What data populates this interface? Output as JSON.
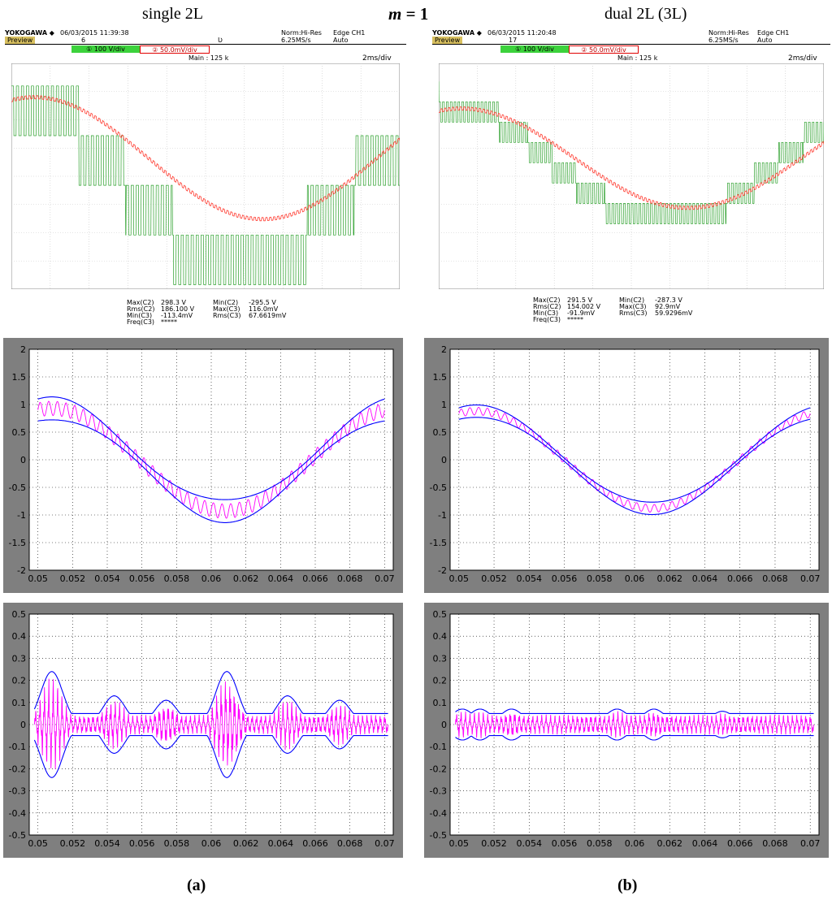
{
  "header": {
    "left": "single 2L",
    "center_var": "m",
    "center_rest": " = 1",
    "right": "dual 2L (3L)"
  },
  "panel_labels": {
    "a_open": "(",
    "a": "a",
    "a_close": ")",
    "b_open": "(",
    "b": "b",
    "b_close": ")"
  },
  "scopes": [
    {
      "brand": "YOKOGAWA ◆",
      "mode": "Preview",
      "date": "06/03/2015 11:39:38",
      "count": "6",
      "extra": "Ʋ",
      "acq_mode": "Norm:Hi-Res",
      "rate": "6.25MS/s",
      "trigger": "Edge CH1",
      "trigger_mode": "Auto",
      "ch1": "① 100 V/div",
      "ch2": "② 50.0mV/div",
      "main": "Main : 125 k",
      "timebase": "2ms/div",
      "stats": [
        [
          "Max(C2)",
          "298.3 V",
          "Min(C2)",
          "-295.5 V"
        ],
        [
          "Rms(C2)",
          "186.100 V",
          "Max(C3)",
          "116.0mV"
        ],
        [
          "Min(C3)",
          "-113.4mV",
          "Rms(C3)",
          "67.6619mV"
        ],
        [
          "Freq(C3)",
          "*****",
          "",
          ""
        ]
      ]
    },
    {
      "brand": "YOKOGAWA ◆",
      "mode": "Preview",
      "date": "06/03/2015 11:20:48",
      "count": "17",
      "extra": "",
      "acq_mode": "Norm:Hi-Res",
      "rate": "6.25MS/s",
      "trigger": "Edge CH1",
      "trigger_mode": "Auto",
      "ch1": "① 100 V/div",
      "ch2": "② 50.0mV/div",
      "main": "Main : 125 k",
      "timebase": "2ms/div",
      "stats": [
        [
          "Max(C2)",
          "291.5 V",
          "Min(C2)",
          "-287.3 V"
        ],
        [
          "Rms(C2)",
          "154.002 V",
          "Max(C3)",
          "92.9mV"
        ],
        [
          "Min(C3)",
          "-91.9mV",
          "Rms(C3)",
          "59.9296mV"
        ],
        [
          "Freq(C3)",
          "*****",
          "",
          ""
        ]
      ]
    }
  ],
  "colors": {
    "scope_green": "#2ca02c",
    "scope_red": "#ff3b30",
    "sim_magenta": "#ff00ff",
    "sim_blue": "#0000ff",
    "frame_gray": "#7f7f7f",
    "scope_grid": "#c8c8c8"
  },
  "chart_data": [
    {
      "id": "a-scope",
      "type": "line",
      "panel": "a",
      "title": "",
      "xlabel": "",
      "ylabel": "",
      "grid": true,
      "series": [
        {
          "color": "green",
          "shape": "multilevel pwm"
        },
        {
          "color": "red",
          "shape": "sine"
        }
      ]
    },
    {
      "id": "b-scope",
      "type": "line",
      "panel": "b",
      "title": "",
      "xlabel": "",
      "ylabel": "",
      "grid": true,
      "series": [
        {
          "color": "green",
          "shape": "multilevel pwm"
        },
        {
          "color": "red",
          "shape": "sine"
        }
      ]
    },
    {
      "id": "a-mid",
      "type": "line",
      "panel": "a",
      "title": "",
      "xlabel": "",
      "ylabel": "",
      "grid": true,
      "xlim": [
        0.0495,
        0.0705
      ],
      "ylim": [
        -2,
        2
      ],
      "xticks": [
        "0.05",
        "0.052",
        "0.054",
        "0.056",
        "0.058",
        "0.06",
        "0.062",
        "0.064",
        "0.066",
        "0.068",
        "0.07"
      ],
      "yticks": [
        "2",
        "1.5",
        "1",
        "0.5",
        "0",
        "-0.5",
        "-1",
        "-1.5",
        "-2"
      ],
      "curve": {
        "amp": 0.93,
        "phase_x": 0.0508,
        "envelope_width": 0.13,
        "ripple_cycles": 40
      },
      "series": [
        {
          "color": "magenta"
        },
        {
          "color": "blue",
          "role": "envelope"
        }
      ]
    },
    {
      "id": "b-mid",
      "type": "line",
      "panel": "b",
      "title": "",
      "xlabel": "",
      "ylabel": "",
      "grid": true,
      "xlim": [
        0.0495,
        0.0705
      ],
      "ylim": [
        -2,
        2
      ],
      "xticks": [
        "0.05",
        "0.052",
        "0.054",
        "0.056",
        "0.058",
        "0.06",
        "0.062",
        "0.064",
        "0.066",
        "0.068",
        "0.07"
      ],
      "yticks": [
        "2",
        "1.5",
        "1",
        "0.5",
        "0",
        "-0.5",
        "-1",
        "-1.5",
        "-2"
      ],
      "curve": {
        "amp": 0.88,
        "phase_x": 0.051,
        "envelope_width": 0.07,
        "ripple_cycles": 40
      },
      "series": [
        {
          "color": "magenta"
        },
        {
          "color": "blue",
          "role": "envelope"
        }
      ]
    },
    {
      "id": "a-bot",
      "type": "line",
      "panel": "a",
      "title": "",
      "xlabel": "",
      "ylabel": "",
      "grid": true,
      "xlim": [
        0.0495,
        0.0705
      ],
      "ylim": [
        -0.5,
        0.5
      ],
      "xticks": [
        "0.05",
        "0.052",
        "0.054",
        "0.056",
        "0.058",
        "0.06",
        "0.062",
        "0.064",
        "0.066",
        "0.068",
        "0.07"
      ],
      "yticks": [
        "0.5",
        "0.4",
        "0.3",
        "0.2",
        "0.1",
        "0",
        "-0.1",
        "-0.2",
        "-0.3",
        "-0.4",
        "-0.5"
      ],
      "envelope": {
        "peaks": [
          [
            0.0508,
            0.24
          ],
          [
            0.0544,
            0.13
          ],
          [
            0.0574,
            0.11
          ],
          [
            0.0609,
            0.24
          ],
          [
            0.0644,
            0.13
          ],
          [
            0.0674,
            0.11
          ]
        ]
      },
      "series": [
        {
          "color": "magenta"
        },
        {
          "color": "blue",
          "role": "envelope"
        }
      ]
    },
    {
      "id": "b-bot",
      "type": "line",
      "panel": "b",
      "title": "",
      "xlabel": "",
      "ylabel": "",
      "grid": true,
      "xlim": [
        0.0495,
        0.0705
      ],
      "ylim": [
        -0.5,
        0.5
      ],
      "xticks": [
        "0.05",
        "0.052",
        "0.054",
        "0.056",
        "0.058",
        "0.06",
        "0.062",
        "0.064",
        "0.066",
        "0.068",
        "0.07"
      ],
      "yticks": [
        "0.5",
        "0.4",
        "0.3",
        "0.2",
        "0.1",
        "0",
        "-0.1",
        "-0.2",
        "-0.3",
        "-0.4",
        "-0.5"
      ],
      "envelope": {
        "peaks": [
          [
            0.0502,
            0.07
          ],
          [
            0.0512,
            0.07
          ],
          [
            0.053,
            0.07
          ],
          [
            0.0552,
            0.05
          ],
          [
            0.058,
            0.05
          ],
          [
            0.059,
            0.07
          ],
          [
            0.0611,
            0.07
          ],
          [
            0.063,
            0.05
          ],
          [
            0.065,
            0.06
          ],
          [
            0.0668,
            0.05
          ],
          [
            0.069,
            0.04
          ]
        ]
      },
      "series": [
        {
          "color": "magenta"
        },
        {
          "color": "blue",
          "role": "envelope"
        }
      ]
    }
  ]
}
